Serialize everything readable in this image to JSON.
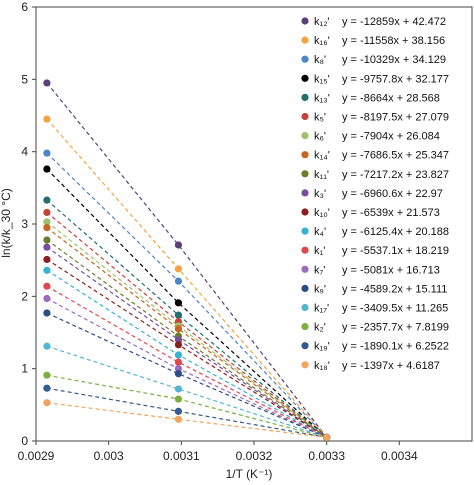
{
  "chart_data": {
    "type": "scatter",
    "title": "",
    "xlabel": "1/T (K⁻¹)",
    "ylabel": "ln(k/k_30 °C)",
    "xlim": [
      0.0029,
      0.0035
    ],
    "ylim": [
      0,
      6
    ],
    "x_tick_labels": [
      "0.0029",
      "0.003",
      "0.0031",
      "0.0032",
      "0.0033",
      "0.0034"
    ],
    "y_tick_labels": [
      "0",
      "1",
      "2",
      "3",
      "4",
      "5",
      "6"
    ],
    "grid": false,
    "legend_position": "right",
    "trendlines": "dashed",
    "x": [
      0.002915,
      0.003096,
      0.0033
    ],
    "series": [
      {
        "name": "k₁₂'",
        "equation": "y = -12859x + 42.472",
        "color": "#5b3f7a",
        "values": [
          4.95,
          2.71,
          0.05
        ]
      },
      {
        "name": "k₁₆'",
        "equation": "y = -11558x + 38.156",
        "color": "#f4a340",
        "values": [
          4.45,
          2.38,
          0.05
        ]
      },
      {
        "name": "k₈'",
        "equation": "y = -10329x + 34.129",
        "color": "#4a86c8",
        "values": [
          3.98,
          2.21,
          0.05
        ]
      },
      {
        "name": "k₁₅'",
        "equation": "y = -9757.8x + 32.177",
        "color": "#000000",
        "values": [
          3.76,
          1.91,
          0.05
        ]
      },
      {
        "name": "k₁₃'",
        "equation": "y = -8664x + 28.568",
        "color": "#1f6f6f",
        "values": [
          3.33,
          1.74,
          0.05
        ]
      },
      {
        "name": "k₅'",
        "equation": "y = -8197.5x + 27.079",
        "color": "#c8423b",
        "values": [
          3.16,
          1.65,
          0.05
        ]
      },
      {
        "name": "k₆'",
        "equation": "y = -7904x + 26.084",
        "color": "#9cc36b",
        "values": [
          3.03,
          1.59,
          0.05
        ]
      },
      {
        "name": "k₁₄'",
        "equation": "y = -7686.5x + 25.347",
        "color": "#c5651e",
        "values": [
          2.95,
          1.55,
          0.05
        ]
      },
      {
        "name": "k₁₁'",
        "equation": "y = -7217.2x + 23.827",
        "color": "#6b7d2a",
        "values": [
          2.78,
          1.45,
          0.05
        ]
      },
      {
        "name": "k₃'",
        "equation": "y = -6960.6x + 22.97",
        "color": "#7a4c9c",
        "values": [
          2.68,
          1.4,
          0.05
        ]
      },
      {
        "name": "k₁₀'",
        "equation": "y = -6539x + 21.573",
        "color": "#8b1f1f",
        "values": [
          2.51,
          1.33,
          0.05
        ]
      },
      {
        "name": "k₄'",
        "equation": "y = -6125.4x + 20.188",
        "color": "#37b2d6",
        "values": [
          2.36,
          1.19,
          0.05
        ]
      },
      {
        "name": "k₁'",
        "equation": "y = -5537.1x + 18.219",
        "color": "#e0484f",
        "values": [
          2.14,
          1.09,
          0.05
        ]
      },
      {
        "name": "k₇'",
        "equation": "y = -5081x + 16.713",
        "color": "#9b6bbd",
        "values": [
          1.97,
          1.0,
          0.05
        ]
      },
      {
        "name": "k₉'",
        "equation": "y = -4589.2x + 15.111",
        "color": "#2b4f85",
        "values": [
          1.77,
          0.93,
          0.05
        ]
      },
      {
        "name": "k₁₇'",
        "equation": "y = -3409.5x + 11.265",
        "color": "#53b7d3",
        "values": [
          1.31,
          0.72,
          0.05
        ]
      },
      {
        "name": "k₂'",
        "equation": "y = -2357.7x + 7.8199",
        "color": "#7bb041",
        "values": [
          0.91,
          0.58,
          0.05
        ]
      },
      {
        "name": "k₁₉'",
        "equation": "y = -1890.1x + 6.2522",
        "color": "#345b8f",
        "values": [
          0.73,
          0.41,
          0.05
        ]
      },
      {
        "name": "k₁₈'",
        "equation": "y = -1397x + 4.6187",
        "color": "#f2a35c",
        "values": [
          0.53,
          0.3,
          0.05
        ]
      }
    ]
  }
}
